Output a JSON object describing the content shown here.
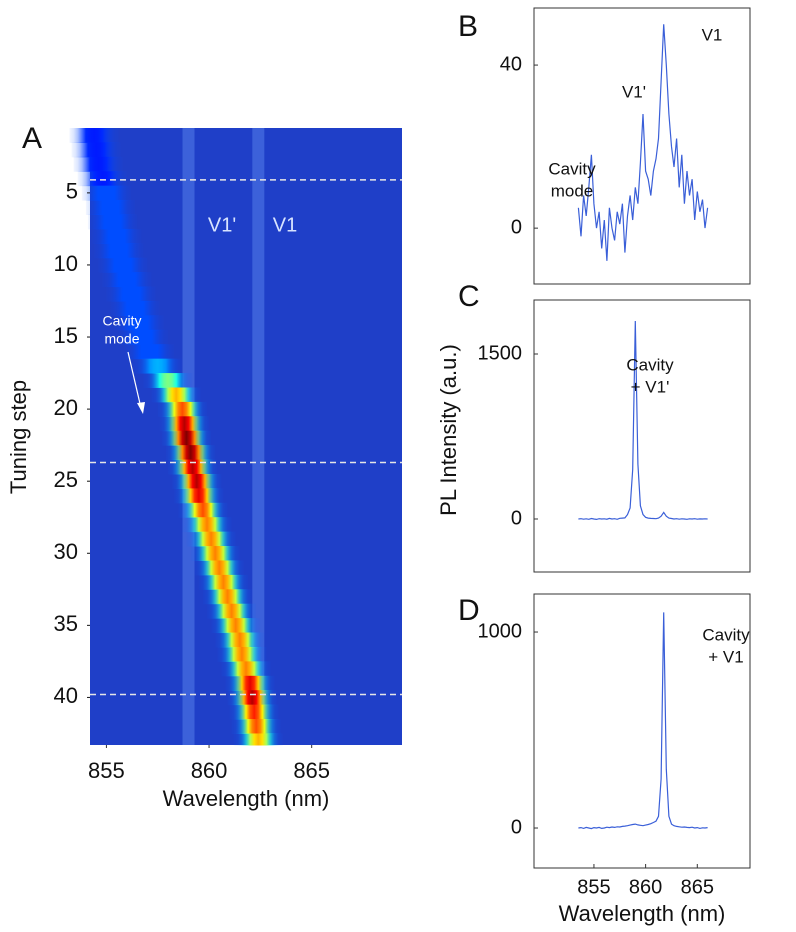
{
  "chart_data": [
    {
      "type": "heatmap",
      "panel_label": "A",
      "xlabel": "Wavelength (nm)",
      "ylabel": "Tuning step",
      "xlim": [
        854.2,
        869.4
      ],
      "xticks": [
        855,
        860,
        865
      ],
      "ylim": [
        0.5,
        43.3
      ],
      "yticks": [
        5,
        10,
        15,
        20,
        25,
        30,
        35,
        40
      ],
      "steps": [
        1,
        2,
        3,
        4,
        5,
        6,
        7,
        8,
        9,
        10,
        11,
        12,
        13,
        14,
        15,
        16,
        17,
        18,
        19,
        20,
        21,
        22,
        23,
        24,
        25,
        26,
        27,
        28,
        29,
        30,
        31,
        32,
        33,
        34,
        35,
        36,
        37,
        38,
        39,
        40,
        41,
        42,
        43
      ],
      "peak_wavelength": [
        854.4,
        854.5,
        854.6,
        854.8,
        855.0,
        855.2,
        855.3,
        855.5,
        855.6,
        855.8,
        856.0,
        856.2,
        856.4,
        856.6,
        856.8,
        857.1,
        857.5,
        858.0,
        858.4,
        858.7,
        858.8,
        858.9,
        859.1,
        859.2,
        859.4,
        859.5,
        859.7,
        859.9,
        860.1,
        860.3,
        860.5,
        860.7,
        860.9,
        861.1,
        861.3,
        861.5,
        861.6,
        861.8,
        862.0,
        862.1,
        862.2,
        862.3,
        862.4
      ],
      "peak_intensity": [
        0.15,
        0.15,
        0.15,
        0.15,
        0.2,
        0.2,
        0.2,
        0.2,
        0.2,
        0.2,
        0.2,
        0.2,
        0.2,
        0.2,
        0.2,
        0.2,
        0.3,
        0.5,
        0.7,
        0.8,
        0.95,
        1,
        1,
        0.95,
        0.95,
        0.9,
        0.8,
        0.75,
        0.75,
        0.75,
        0.75,
        0.75,
        0.75,
        0.75,
        0.75,
        0.75,
        0.75,
        0.75,
        0.9,
        0.95,
        0.85,
        0.8,
        0.7
      ],
      "emission_lines": [
        859.0,
        862.4
      ],
      "dashed_lines": [
        4.1,
        23.7,
        39.8
      ],
      "annotations": [
        [
          "V1'"
        ],
        [
          "V1"
        ],
        [
          "Cavity",
          "mode"
        ]
      ]
    },
    {
      "type": "line",
      "panel_label": "B",
      "color": "#3a5fd8",
      "xlim": [
        849.2,
        870.1
      ],
      "ylim": [
        -13.7,
        54
      ],
      "yticks": [
        0,
        40
      ],
      "x": [
        853.5,
        853.75,
        854,
        854.25,
        854.5,
        854.75,
        855,
        855.25,
        855.5,
        855.75,
        856,
        856.25,
        856.5,
        856.75,
        857,
        857.25,
        857.5,
        857.75,
        858,
        858.25,
        858.5,
        858.75,
        859,
        859.25,
        859.5,
        859.75,
        860,
        860.25,
        860.5,
        860.75,
        861,
        861.25,
        861.5,
        861.75,
        862,
        862.25,
        862.5,
        862.75,
        863,
        863.25,
        863.5,
        863.75,
        864,
        864.25,
        864.5,
        864.75,
        865,
        865.25,
        865.5,
        865.75,
        866
      ],
      "values": [
        5,
        -2,
        8,
        3,
        10,
        18,
        6,
        0,
        4,
        -5,
        2,
        -8,
        5,
        0,
        -3,
        4,
        1,
        6,
        -6,
        3,
        8,
        2,
        10,
        6,
        16,
        28,
        14,
        12,
        8,
        14,
        17,
        22,
        36,
        50,
        40,
        28,
        20,
        15,
        22,
        10,
        18,
        6,
        14,
        8,
        12,
        2,
        9,
        4,
        7,
        0,
        5
      ],
      "annotations": [
        [
          "Cavity",
          "mode"
        ],
        [
          "V1'"
        ],
        [
          "V1"
        ]
      ]
    },
    {
      "type": "line",
      "panel_label": "C",
      "color": "#3a5fd8",
      "ylabel": "PL Intensity (a.u.)",
      "xlim": [
        849.2,
        870.1
      ],
      "ylim": [
        -482,
        1991
      ],
      "yticks": [
        0,
        1500
      ],
      "x": [
        853.5,
        853.75,
        854,
        854.25,
        854.5,
        854.75,
        855,
        855.25,
        855.5,
        855.75,
        856,
        856.25,
        856.5,
        856.75,
        857,
        857.25,
        857.5,
        857.75,
        858,
        858.25,
        858.5,
        858.75,
        859,
        859.25,
        859.5,
        859.75,
        860,
        860.25,
        860.5,
        860.75,
        861,
        861.25,
        861.5,
        861.75,
        862,
        862.25,
        862.5,
        862.75,
        863,
        863.25,
        863.5,
        863.75,
        864,
        864.25,
        864.5,
        864.75,
        865,
        865.25,
        865.5,
        865.75,
        866
      ],
      "values": [
        0,
        3,
        -2,
        2,
        -3,
        4,
        0,
        -4,
        3,
        0,
        2,
        -2,
        5,
        0,
        3,
        -3,
        6,
        8,
        10,
        40,
        100,
        450,
        1800,
        500,
        120,
        40,
        15,
        8,
        5,
        4,
        3,
        8,
        25,
        60,
        25,
        8,
        4,
        0,
        3,
        -2,
        2,
        0,
        -3,
        2,
        0,
        3,
        -2,
        1,
        0,
        2,
        0
      ],
      "annotations": [
        [
          "Cavity",
          "+ V1'"
        ]
      ]
    },
    {
      "type": "line",
      "panel_label": "D",
      "color": "#3a5fd8",
      "xlabel": "Wavelength (nm)",
      "xlim": [
        849.2,
        870.1
      ],
      "xticks": [
        855,
        860,
        865
      ],
      "ylim": [
        -204,
        1194
      ],
      "yticks": [
        0,
        1000
      ],
      "x": [
        853.5,
        853.75,
        854,
        854.25,
        854.5,
        854.75,
        855,
        855.25,
        855.5,
        855.75,
        856,
        856.25,
        856.5,
        856.75,
        857,
        857.25,
        857.5,
        857.75,
        858,
        858.25,
        858.5,
        858.75,
        859,
        859.25,
        859.5,
        859.75,
        860,
        860.25,
        860.5,
        860.75,
        861,
        861.25,
        861.5,
        861.75,
        862,
        862.25,
        862.5,
        862.75,
        863,
        863.25,
        863.5,
        863.75,
        864,
        864.25,
        864.5,
        864.75,
        865,
        865.25,
        865.5,
        865.75,
        866
      ],
      "values": [
        0,
        2,
        -2,
        3,
        0,
        -3,
        2,
        0,
        3,
        -2,
        0,
        4,
        2,
        5,
        3,
        6,
        5,
        8,
        10,
        12,
        15,
        18,
        20,
        16,
        14,
        12,
        15,
        18,
        22,
        28,
        35,
        60,
        250,
        1100,
        300,
        60,
        20,
        12,
        8,
        6,
        4,
        5,
        3,
        2,
        4,
        0,
        2,
        -2,
        1,
        0,
        2
      ],
      "annotations": [
        [
          "Cavity",
          "+ V1"
        ]
      ]
    }
  ]
}
